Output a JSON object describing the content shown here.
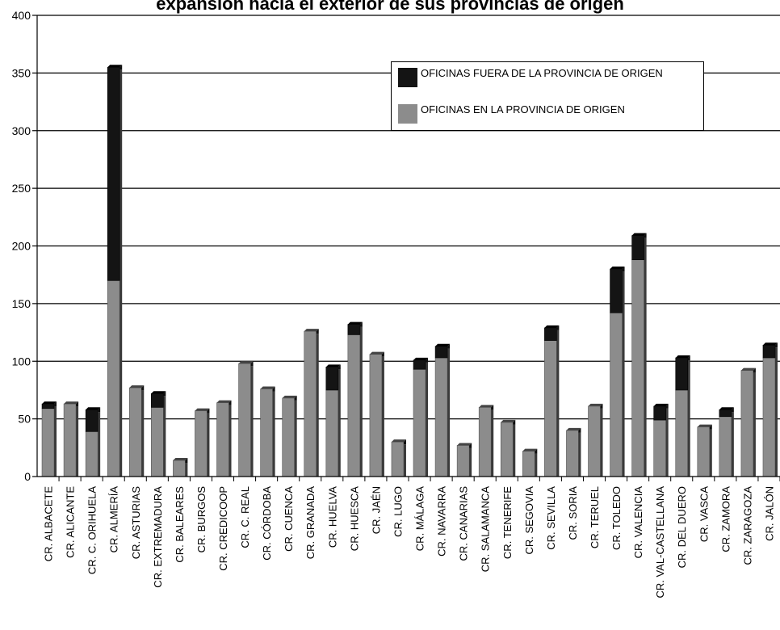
{
  "chart_data": {
    "type": "bar",
    "stacked": true,
    "title": "expansión hacia el exterior de sus provincias de origen",
    "xlabel": "",
    "ylabel": "",
    "ylim": [
      0,
      400
    ],
    "yticks": [
      0,
      50,
      100,
      150,
      200,
      250,
      300,
      350,
      400
    ],
    "grid": true,
    "legend_position": "top-right",
    "categories": [
      "CR. ALBACETE",
      "CR. ALICANTE",
      "CR. C. ORIHUELA",
      "CR. ALMERÍA",
      "CR. ASTURIAS",
      "CR. EXTREMADURA",
      "CR. BALEARES",
      "CR. BURGOS",
      "CR. CREDICOOP",
      "CR. C. REAL",
      "CR. CÓRDOBA",
      "CR. CUENCA",
      "CR. GRANADA",
      "CR. HUELVA",
      "CR. HUESCA",
      "CR. JAÉN",
      "CR. LUGO",
      "CR. MÁLAGA",
      "CR. NAVARRA",
      "CR. CANARIAS",
      "CR. SALAMANCA",
      "CR. TENERIFE",
      "CR. SEGOVIA",
      "CR. SEVILLA",
      "CR. SORIA",
      "CR. TERUEL",
      "CR. TOLEDO",
      "CR. VALENCIA",
      "CR. VAL-CASTELLANA",
      "CR. DEL DUERO",
      "CR. VASCA",
      "CR. ZAMORA",
      "CR. ZARAGOZA",
      "CR. JALÓN"
    ],
    "series": [
      {
        "name": "OFICINAS EN LA PROVINCIA DE ORIGEN",
        "color": "#8c8c8c",
        "values": [
          59,
          63,
          39,
          170,
          77,
          60,
          14,
          57,
          64,
          98,
          76,
          68,
          126,
          75,
          123,
          106,
          30,
          93,
          103,
          27,
          60,
          47,
          22,
          118,
          40,
          61,
          142,
          188,
          49,
          75,
          43,
          52,
          92,
          103
        ]
      },
      {
        "name": "OFICINAS FUERA DE LA PROVINCIA DE ORIGEN",
        "color": "#141414",
        "values": [
          4,
          0,
          19,
          185,
          0,
          12,
          0,
          0,
          0,
          0,
          0,
          0,
          0,
          20,
          9,
          0,
          0,
          8,
          10,
          0,
          0,
          0,
          0,
          11,
          0,
          0,
          38,
          21,
          12,
          28,
          0,
          6,
          0,
          11
        ]
      }
    ]
  }
}
